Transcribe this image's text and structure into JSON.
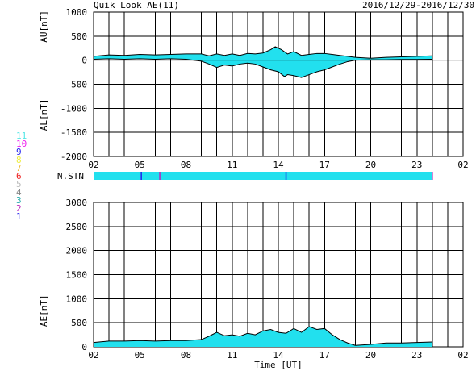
{
  "header": {
    "title": "Quik Look AE(11)",
    "date_range": "2016/12/29-2016/12/30"
  },
  "colors": {
    "fill": "#22e0ee",
    "axis": "#000000"
  },
  "station_legend": [
    {
      "label": "11",
      "color": "#55e6e6"
    },
    {
      "label": "10",
      "color": "#ee22ee"
    },
    {
      "label": "9",
      "color": "#2222ee"
    },
    {
      "label": "8",
      "color": "#eeee44"
    },
    {
      "label": "7",
      "color": "#eebb33"
    },
    {
      "label": "6",
      "color": "#ee2222"
    },
    {
      "label": "5",
      "color": "#bbbbbb"
    },
    {
      "label": "4",
      "color": "#888888"
    },
    {
      "label": "3",
      "color": "#22aaaa"
    },
    {
      "label": "2",
      "color": "#bb22bb"
    },
    {
      "label": "1",
      "color": "#2222ee"
    }
  ],
  "chart_data": [
    {
      "type": "area",
      "panel": "AU/AL",
      "ylabel_top": "AU[nT]",
      "ylabel_bottom": "AL[nT]",
      "ylim": [
        -2000,
        1000
      ],
      "yticks": [
        -2000,
        -1500,
        -1000,
        -500,
        0,
        500,
        1000
      ],
      "xlim": [
        2,
        26
      ],
      "xtick_labels": [
        "02",
        "05",
        "08",
        "11",
        "14",
        "17",
        "20",
        "23",
        "02"
      ],
      "xtick_hours": [
        2,
        5,
        8,
        11,
        14,
        17,
        20,
        23,
        26
      ],
      "grid": true,
      "series": [
        {
          "hours": [
            2.0,
            3.0,
            4.0,
            5.0,
            6.0,
            7.0,
            8.0,
            9.0,
            9.5,
            10.0,
            10.5,
            11.0,
            11.5,
            12.0,
            12.5,
            13.0,
            13.5,
            13.8,
            14.2,
            14.6,
            15.0,
            15.5,
            16.0,
            16.5,
            17.0,
            17.5,
            18.0,
            18.5,
            19.0,
            20.0,
            21.0,
            22.0,
            23.0,
            24.0
          ],
          "values": [
            80,
            110,
            100,
            120,
            110,
            120,
            130,
            130,
            90,
            130,
            100,
            130,
            100,
            140,
            130,
            150,
            220,
            280,
            220,
            130,
            180,
            100,
            120,
            140,
            140,
            120,
            100,
            80,
            60,
            40,
            60,
            70,
            80,
            90
          ]
        },
        {
          "hours": [
            2.0,
            3.0,
            4.0,
            5.0,
            6.0,
            7.0,
            8.0,
            9.0,
            9.5,
            10.0,
            10.5,
            11.0,
            11.5,
            12.0,
            12.5,
            13.0,
            13.5,
            14.0,
            14.4,
            14.6,
            15.0,
            15.5,
            16.0,
            16.5,
            17.0,
            17.5,
            18.0,
            18.5,
            19.0,
            20.0,
            21.0,
            22.0,
            23.0,
            24.0
          ],
          "values": [
            20,
            30,
            20,
            30,
            20,
            30,
            20,
            -20,
            -80,
            -150,
            -100,
            -120,
            -80,
            -60,
            -80,
            -140,
            -200,
            -240,
            -340,
            -300,
            -320,
            -360,
            -300,
            -240,
            -200,
            -140,
            -80,
            -30,
            0,
            10,
            10,
            15,
            15,
            20
          ]
        }
      ]
    },
    {
      "type": "bar",
      "panel": "N.STN",
      "label": "N.STN",
      "xlim": [
        2,
        26
      ],
      "start_hour": 2.0,
      "end_hour": 24.0,
      "markers": [
        {
          "hour": 5.1,
          "color": "#2222ee"
        },
        {
          "hour": 6.3,
          "color": "#bb22bb"
        },
        {
          "hour": 14.5,
          "color": "#2222ee"
        },
        {
          "hour": 24.0,
          "color": "#bb22bb"
        }
      ]
    },
    {
      "type": "area",
      "panel": "AE",
      "ylabel": "AE[nT]",
      "xlabel": "Time [UT]",
      "ylim": [
        0,
        3000
      ],
      "yticks": [
        0,
        500,
        1000,
        1500,
        2000,
        2500,
        3000
      ],
      "xlim": [
        2,
        26
      ],
      "xtick_labels": [
        "02",
        "05",
        "08",
        "11",
        "14",
        "17",
        "20",
        "23",
        "02"
      ],
      "xtick_hours": [
        2,
        5,
        8,
        11,
        14,
        17,
        20,
        23,
        26
      ],
      "grid": true,
      "series": [
        {
          "hours": [
            2.0,
            3.0,
            4.0,
            5.0,
            6.0,
            7.0,
            8.0,
            9.0,
            9.5,
            10.0,
            10.5,
            11.0,
            11.5,
            12.0,
            12.5,
            13.0,
            13.5,
            14.0,
            14.5,
            15.0,
            15.5,
            16.0,
            16.5,
            17.0,
            17.5,
            18.0,
            18.5,
            19.0,
            20.0,
            21.0,
            22.0,
            23.0,
            24.0
          ],
          "values": [
            90,
            120,
            120,
            130,
            120,
            130,
            130,
            150,
            220,
            300,
            230,
            250,
            220,
            280,
            250,
            330,
            360,
            300,
            280,
            380,
            300,
            420,
            360,
            380,
            250,
            150,
            80,
            30,
            50,
            80,
            80,
            90,
            100
          ]
        }
      ]
    }
  ]
}
